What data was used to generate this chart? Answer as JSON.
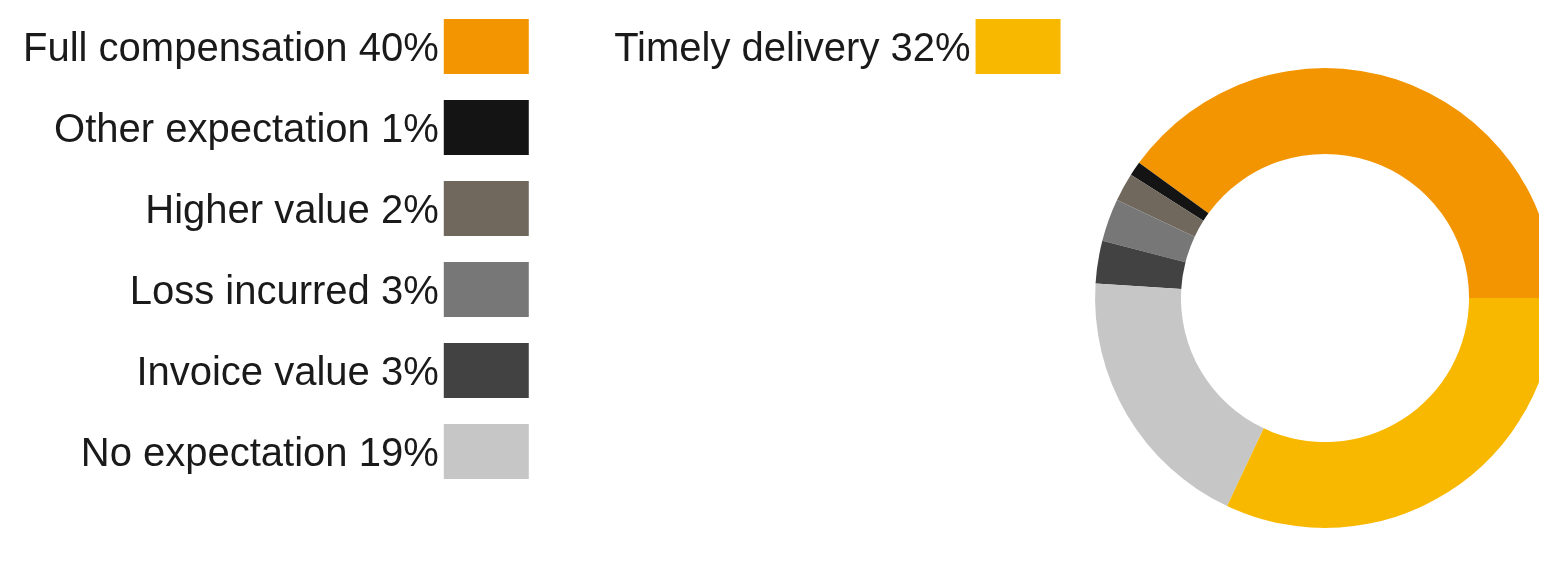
{
  "chart_data": {
    "type": "donut",
    "categories": [
      "Full compensation",
      "Other expectation",
      "Higher value",
      "Loss incurred",
      "Invoice value",
      "No expectation",
      "Timely delivery"
    ],
    "values": [
      40,
      1,
      2,
      3,
      3,
      19,
      32
    ],
    "value_labels": [
      "40%",
      "1%",
      "2%",
      "3%",
      "3%",
      "19%",
      "32%"
    ],
    "colors": [
      "#f39500",
      "#141414",
      "#70685c",
      "#777777",
      "#424242",
      "#c6c6c6",
      "#f9b800"
    ],
    "legend": "left"
  }
}
